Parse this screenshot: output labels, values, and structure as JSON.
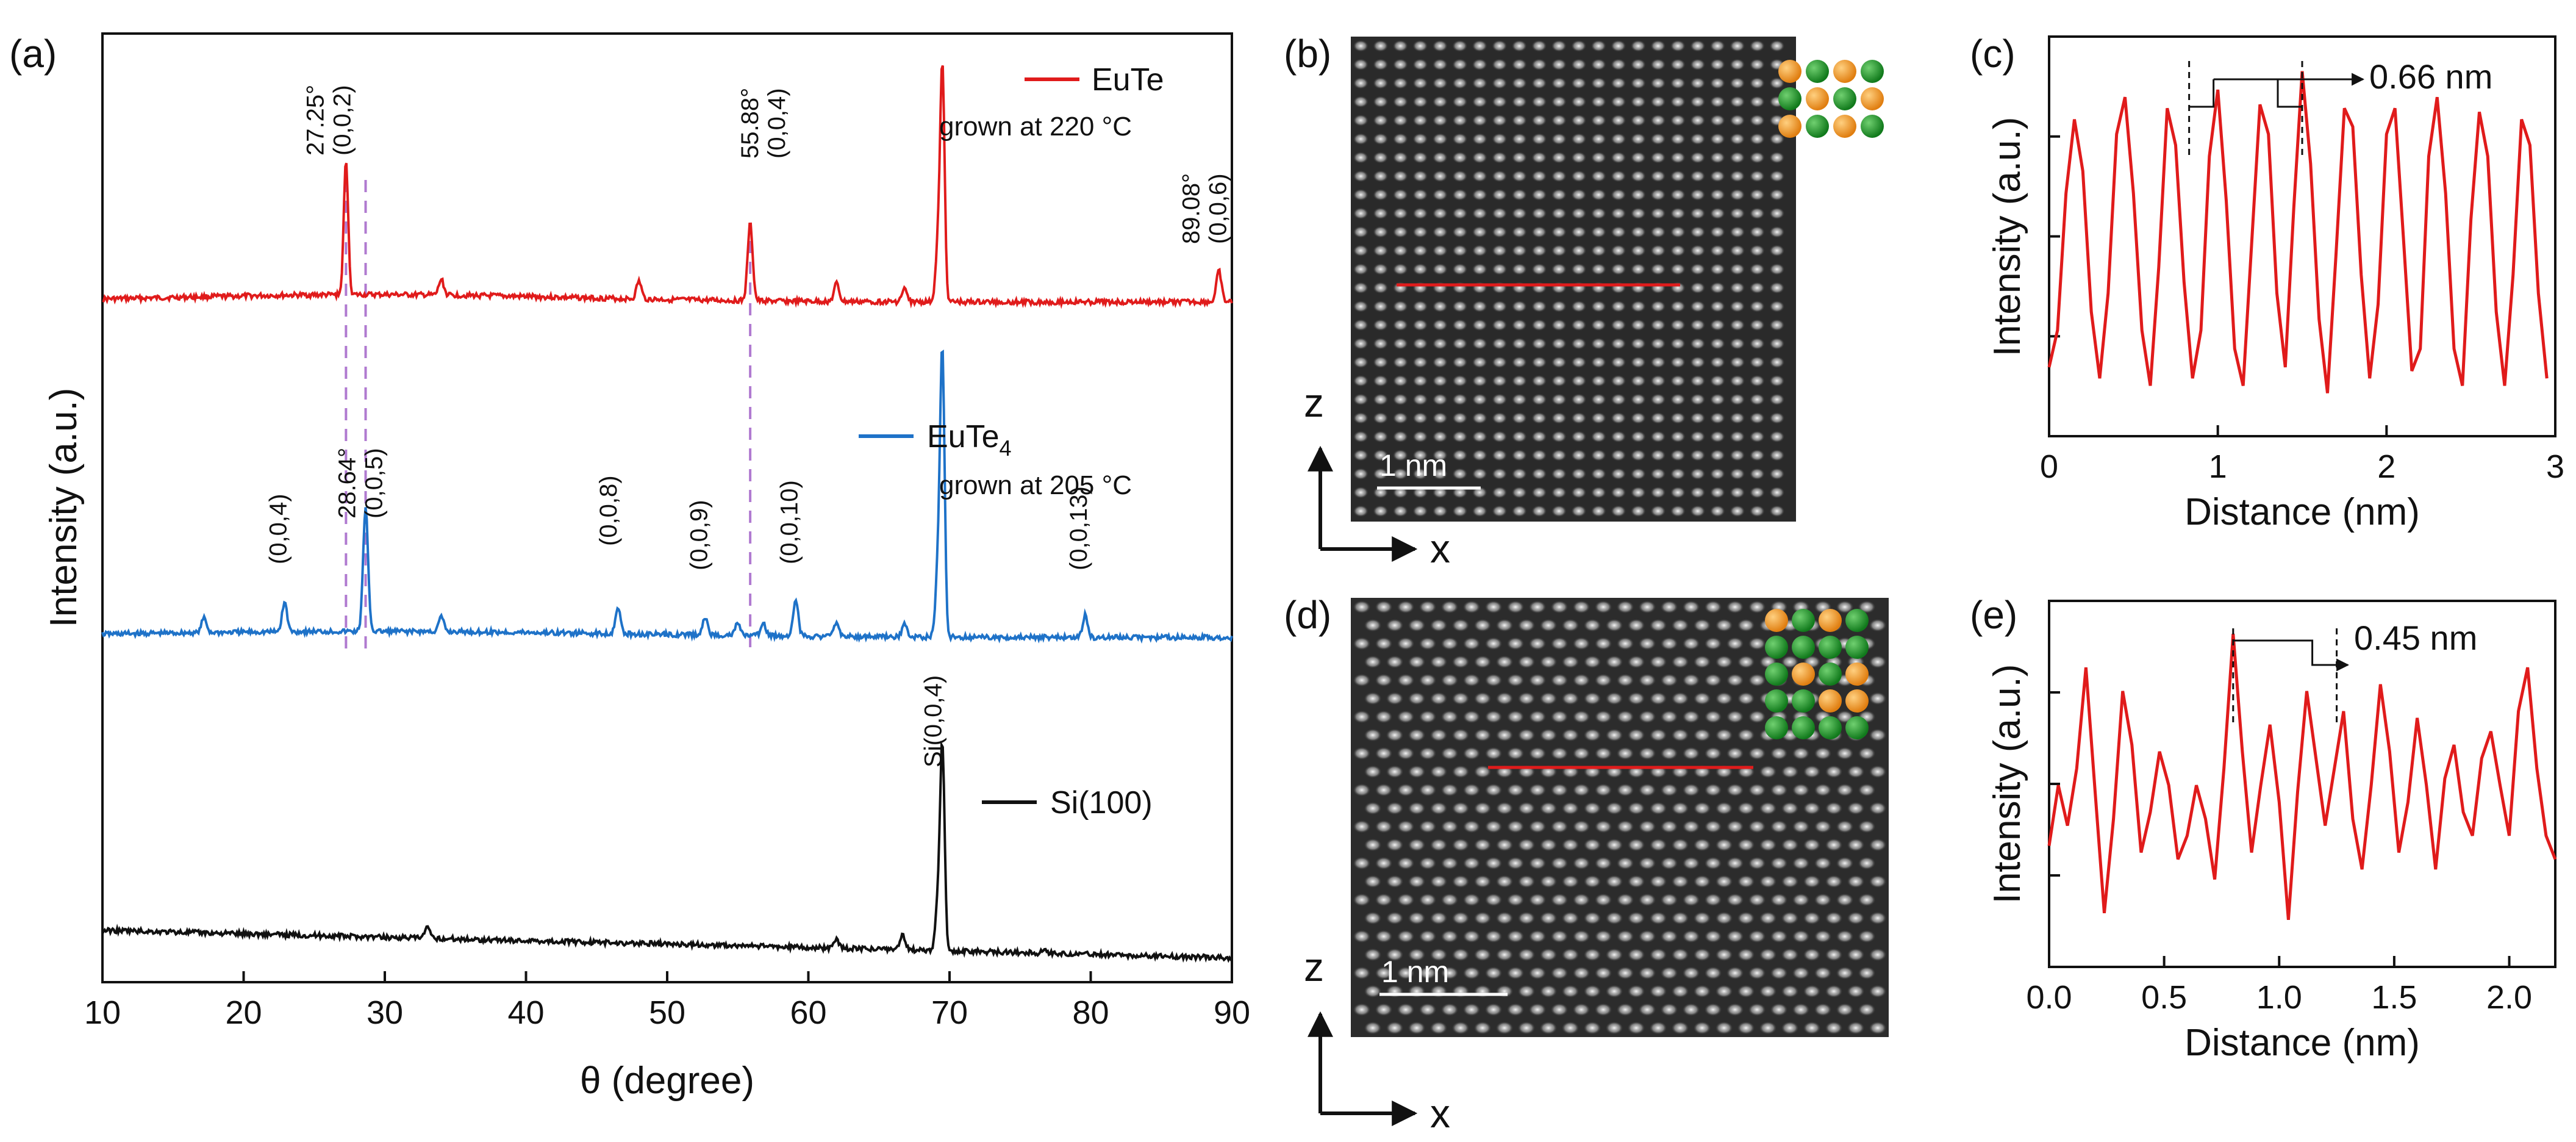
{
  "chart_data": [
    {
      "panel": "(a)",
      "type": "line",
      "xlabel": "θ (degree)",
      "ylabel": "Intensity (a.u.)",
      "xlim": [
        10,
        90
      ],
      "xticks": [
        "10",
        "20",
        "30",
        "40",
        "50",
        "60",
        "70",
        "80",
        "90"
      ],
      "yticks_shown": false,
      "series": [
        {
          "name": "EuTe",
          "color": "#e01b1b",
          "legend": "EuTe",
          "note": "grown at 220 °C",
          "baseline": 0.0,
          "peaks": [
            {
              "x": 27.25,
              "h": 0.52
            },
            {
              "x": 34.0,
              "h": 0.06
            },
            {
              "x": 48.0,
              "h": 0.07
            },
            {
              "x": 55.88,
              "h": 0.3
            },
            {
              "x": 62.0,
              "h": 0.07
            },
            {
              "x": 66.8,
              "h": 0.05
            },
            {
              "x": 69.2,
              "h": 0.22
            },
            {
              "x": 69.5,
              "h": 0.88
            },
            {
              "x": 89.08,
              "h": 0.12
            }
          ],
          "peak_labels": [
            {
              "x": 27.25,
              "angle": "27.25°",
              "hkl": "(0,0,2)"
            },
            {
              "x": 55.88,
              "angle": "55.88°",
              "hkl": "(0,0,4)"
            },
            {
              "x": 89.08,
              "angle": "89.08°",
              "hkl": "(0,0,6)"
            }
          ]
        },
        {
          "name": "EuTe4",
          "color": "#1e72c8",
          "legend_main": "EuTe",
          "legend_sub": "4",
          "note": "grown at 205 °C",
          "baseline": 0.0,
          "peaks": [
            {
              "x": 17.2,
              "h": 0.06
            },
            {
              "x": 22.9,
              "h": 0.12
            },
            {
              "x": 28.64,
              "h": 0.5
            },
            {
              "x": 34.0,
              "h": 0.06
            },
            {
              "x": 46.5,
              "h": 0.11
            },
            {
              "x": 52.7,
              "h": 0.07
            },
            {
              "x": 55.0,
              "h": 0.05
            },
            {
              "x": 56.8,
              "h": 0.05
            },
            {
              "x": 59.1,
              "h": 0.15
            },
            {
              "x": 62.0,
              "h": 0.06
            },
            {
              "x": 66.8,
              "h": 0.05
            },
            {
              "x": 69.2,
              "h": 0.3
            },
            {
              "x": 69.5,
              "h": 1.12
            },
            {
              "x": 79.6,
              "h": 0.09
            }
          ],
          "peak_labels": [
            {
              "x": 22.9,
              "angle": "",
              "hkl": "(0,0,4)"
            },
            {
              "x": 28.64,
              "angle": "28.64°",
              "hkl": "(0,0,5)"
            },
            {
              "x": 46.5,
              "angle": "",
              "hkl": "(0,0,8)"
            },
            {
              "x": 52.7,
              "angle": "",
              "hkl": "(0,0,9)"
            },
            {
              "x": 59.1,
              "angle": "",
              "hkl": "(0,0,10)"
            },
            {
              "x": 79.6,
              "angle": "",
              "hkl": "(0,0,13)"
            }
          ]
        },
        {
          "name": "Si(100)",
          "color": "#111111",
          "legend": "Si(100)",
          "baseline": 0.0,
          "peaks": [
            {
              "x": 33.0,
              "h": 0.05
            },
            {
              "x": 62.0,
              "h": 0.04
            },
            {
              "x": 66.7,
              "h": 0.07
            },
            {
              "x": 69.2,
              "h": 0.25
            },
            {
              "x": 69.5,
              "h": 0.95
            },
            {
              "x": 76.7,
              "h": 0.02
            }
          ],
          "peak_labels": [
            {
              "x": 69.5,
              "angle": "",
              "hkl": "Si(0,0,4)"
            }
          ]
        }
      ],
      "reference_lines": [
        27.25,
        28.64,
        55.88
      ]
    },
    {
      "panel": "(b)",
      "type": "image",
      "scale_bar": "1 nm",
      "axes": {
        "vertical": "z",
        "horizontal": "x"
      }
    },
    {
      "panel": "(c)",
      "type": "line",
      "xlabel": "Distance (nm)",
      "ylabel": "Intensity (a.u.)",
      "xlim": [
        0,
        3
      ],
      "xticks": [
        "0",
        "1",
        "2",
        "3"
      ],
      "color": "#e01b1b",
      "period_nm": 0.33,
      "annotation": "0.66 nm",
      "x": [
        0.0,
        0.05,
        0.1,
        0.15,
        0.2,
        0.25,
        0.3,
        0.35,
        0.4,
        0.45,
        0.5,
        0.55,
        0.6,
        0.65,
        0.7,
        0.75,
        0.8,
        0.85,
        0.9,
        0.95,
        1.0,
        1.05,
        1.1,
        1.15,
        1.2,
        1.25,
        1.3,
        1.35,
        1.4,
        1.45,
        1.5,
        1.55,
        1.6,
        1.65,
        1.7,
        1.75,
        1.8,
        1.85,
        1.9,
        1.95,
        2.0,
        2.05,
        2.1,
        2.15,
        2.2,
        2.25,
        2.3,
        2.35,
        2.4,
        2.45,
        2.5,
        2.55,
        2.6,
        2.65,
        2.7,
        2.75,
        2.8,
        2.85,
        2.9,
        2.95
      ],
      "y": [
        0.15,
        0.25,
        0.62,
        0.82,
        0.68,
        0.3,
        0.12,
        0.35,
        0.78,
        0.88,
        0.62,
        0.25,
        0.1,
        0.42,
        0.85,
        0.75,
        0.38,
        0.12,
        0.25,
        0.72,
        0.9,
        0.6,
        0.2,
        0.1,
        0.48,
        0.86,
        0.78,
        0.35,
        0.15,
        0.58,
        0.95,
        0.7,
        0.28,
        0.08,
        0.45,
        0.85,
        0.8,
        0.4,
        0.12,
        0.32,
        0.78,
        0.85,
        0.5,
        0.14,
        0.2,
        0.72,
        0.88,
        0.62,
        0.2,
        0.1,
        0.55,
        0.84,
        0.72,
        0.3,
        0.1,
        0.4,
        0.82,
        0.75,
        0.35,
        0.12
      ]
    },
    {
      "panel": "(d)",
      "type": "image",
      "scale_bar": "1 nm",
      "axes": {
        "vertical": "z",
        "horizontal": "x"
      }
    },
    {
      "panel": "(e)",
      "type": "line",
      "xlabel": "Distance (nm)",
      "ylabel": "Intensity (a.u.)",
      "xlim": [
        0,
        2.2
      ],
      "xticks": [
        "0.0",
        "0.5",
        "1.0",
        "1.5",
        "2.0"
      ],
      "color": "#e01b1b",
      "annotation": "0.45 nm",
      "x": [
        0.0,
        0.04,
        0.08,
        0.12,
        0.16,
        0.2,
        0.24,
        0.28,
        0.32,
        0.36,
        0.4,
        0.44,
        0.48,
        0.52,
        0.56,
        0.6,
        0.64,
        0.68,
        0.72,
        0.76,
        0.8,
        0.84,
        0.88,
        0.92,
        0.96,
        1.0,
        1.04,
        1.08,
        1.12,
        1.16,
        1.2,
        1.24,
        1.28,
        1.32,
        1.36,
        1.4,
        1.44,
        1.48,
        1.52,
        1.56,
        1.6,
        1.64,
        1.68,
        1.72,
        1.76,
        1.8,
        1.84,
        1.88,
        1.92,
        1.96,
        2.0,
        2.04,
        2.08,
        2.12,
        2.16,
        2.2
      ],
      "y": [
        0.32,
        0.5,
        0.38,
        0.55,
        0.85,
        0.48,
        0.12,
        0.4,
        0.78,
        0.62,
        0.3,
        0.42,
        0.6,
        0.5,
        0.28,
        0.35,
        0.5,
        0.4,
        0.22,
        0.55,
        0.95,
        0.6,
        0.3,
        0.5,
        0.68,
        0.45,
        0.1,
        0.48,
        0.78,
        0.58,
        0.38,
        0.55,
        0.72,
        0.4,
        0.25,
        0.5,
        0.8,
        0.6,
        0.3,
        0.45,
        0.7,
        0.5,
        0.25,
        0.52,
        0.62,
        0.42,
        0.35,
        0.58,
        0.66,
        0.5,
        0.35,
        0.72,
        0.85,
        0.55,
        0.35,
        0.28
      ]
    }
  ],
  "labels": {
    "panel_a": "(a)",
    "panel_b": "(b)",
    "panel_c": "(c)",
    "panel_d": "(d)",
    "panel_e": "(e)",
    "a_xlabel": "θ (degree)",
    "a_ylabel": "Intensity (a.u.)",
    "eute_legend": "EuTe",
    "eute_note": "grown at 220 °C",
    "eute4_legend": "EuTe",
    "eute4_sub": "4",
    "eute4_note": "grown at 205 °C",
    "si_legend": "Si(100)",
    "b_scale": "1 nm",
    "d_scale": "1 nm",
    "z_letter": "z",
    "x_letter": "x",
    "c_xlabel": "Distance (nm)",
    "c_ylabel": "Intensity (a.u.)",
    "c_anno": "0.66 nm",
    "e_xlabel": "Distance (nm)",
    "e_ylabel": "Intensity (a.u.)",
    "e_anno": "0.45 nm"
  },
  "colors": {
    "eute": "#e01b1b",
    "eute4": "#1e72c8",
    "si": "#111111",
    "dashed_ref": "#b07ad0",
    "atom_orange": "#f0961a",
    "atom_green": "#1f9a2a",
    "profile_line": "#e01b1b"
  }
}
